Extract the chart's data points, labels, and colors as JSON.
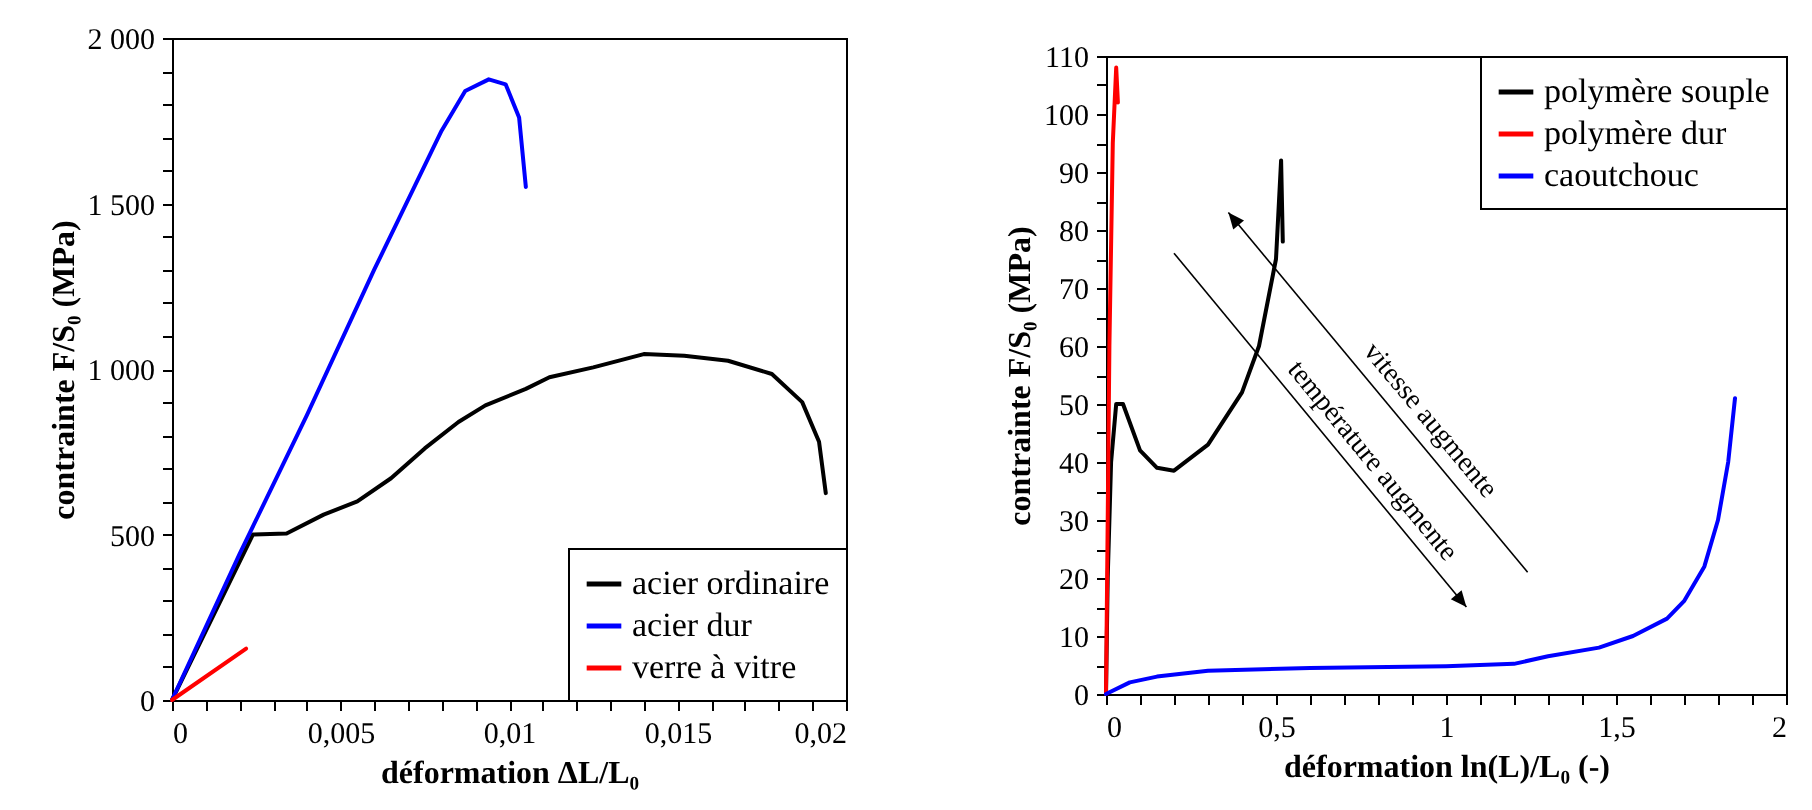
{
  "chart_data": [
    {
      "type": "line",
      "xlabel": "déformation ΔL/L₀",
      "ylabel": "contrainte F/S₀ (MPa)",
      "legend": "bottom right",
      "xlim": [
        0,
        0.02
      ],
      "ylim": [
        0,
        2000
      ],
      "xticks": [
        0,
        {
          "value": 0.001,
          "label": null
        },
        {
          "value": 0.002,
          "label": null
        },
        {
          "value": 0.003,
          "label": null
        },
        {
          "value": 0.004,
          "label": null
        },
        {
          "value": 0.005,
          "label": "0,005"
        },
        {
          "value": 0.006,
          "label": null
        },
        {
          "value": 0.007,
          "label": null
        },
        {
          "value": 0.008,
          "label": null
        },
        {
          "value": 0.009,
          "label": null
        },
        {
          "value": 0.01,
          "label": "0,01"
        },
        {
          "value": 0.011,
          "label": null
        },
        {
          "value": 0.012,
          "label": null
        },
        {
          "value": 0.013,
          "label": null
        },
        {
          "value": 0.014,
          "label": null
        },
        {
          "value": 0.015,
          "label": "0,015"
        },
        {
          "value": 0.016,
          "label": null
        },
        {
          "value": 0.017,
          "label": null
        },
        {
          "value": 0.018,
          "label": null
        },
        {
          "value": 0.019,
          "label": null
        },
        {
          "value": 0.02,
          "label": "0,02"
        }
      ],
      "yticks": [
        0,
        {
          "value": 100,
          "label": null
        },
        {
          "value": 200,
          "label": null
        },
        {
          "value": 300,
          "label": null
        },
        {
          "value": 400,
          "label": null
        },
        500,
        {
          "value": 600,
          "label": null
        },
        {
          "value": 700,
          "label": null
        },
        {
          "value": 800,
          "label": null
        },
        {
          "value": 900,
          "label": null
        },
        {
          "value": 1000,
          "label": "1 000"
        },
        {
          "value": 1100,
          "label": null
        },
        {
          "value": 1200,
          "label": null
        },
        {
          "value": 1300,
          "label": null
        },
        {
          "value": 1400,
          "label": null
        },
        {
          "value": 1500,
          "label": "1 500"
        },
        {
          "value": 1600,
          "label": null
        },
        {
          "value": 1700,
          "label": null
        },
        {
          "value": 1800,
          "label": null
        },
        {
          "value": 1900,
          "label": null
        },
        {
          "value": 2000,
          "label": "2 000"
        }
      ],
      "series": [
        {
          "name": "acier ordinaire",
          "color": "#000000",
          "x": [
            0,
            0.0024,
            0.0034,
            0.0045,
            0.0055,
            0.0065,
            0.0075,
            0.0085,
            0.0093,
            0.0105,
            0.0112,
            0.0125,
            0.014,
            0.0152,
            0.0165,
            0.0178,
            0.0187,
            0.0192,
            0.0194
          ],
          "values": [
            0,
            500,
            503,
            560,
            600,
            670,
            760,
            840,
            890,
            940,
            975,
            1005,
            1045,
            1040,
            1025,
            985,
            900,
            780,
            625
          ]
        },
        {
          "name": "acier dur",
          "color": "#0000ff",
          "x": [
            0,
            0.002,
            0.004,
            0.006,
            0.008,
            0.0087,
            0.0094,
            0.0099,
            0.0103,
            0.0105
          ],
          "values": [
            0,
            440,
            860,
            1300,
            1720,
            1840,
            1875,
            1860,
            1760,
            1550
          ]
        },
        {
          "name": "verre à vitre",
          "color": "#ff0000",
          "x": [
            0,
            0.0022
          ],
          "values": [
            0,
            155
          ]
        }
      ]
    },
    {
      "type": "line",
      "xlabel": "déformation ln(L)/L₀ (-)",
      "ylabel": "contrainte F/S₀ (MPa)",
      "legend": "top right",
      "xlim": [
        0,
        2
      ],
      "ylim": [
        0,
        110
      ],
      "xticks": [
        0,
        {
          "value": 0.1,
          "label": null
        },
        {
          "value": 0.2,
          "label": null
        },
        {
          "value": 0.3,
          "label": null
        },
        {
          "value": 0.4,
          "label": null
        },
        {
          "value": 0.5,
          "label": "0,5"
        },
        {
          "value": 0.6,
          "label": null
        },
        {
          "value": 0.7,
          "label": null
        },
        {
          "value": 0.8,
          "label": null
        },
        {
          "value": 0.9,
          "label": null
        },
        1,
        {
          "value": 1.1,
          "label": null
        },
        {
          "value": 1.2,
          "label": null
        },
        {
          "value": 1.3,
          "label": null
        },
        {
          "value": 1.4,
          "label": null
        },
        {
          "value": 1.5,
          "label": "1,5"
        },
        {
          "value": 1.6,
          "label": null
        },
        {
          "value": 1.7,
          "label": null
        },
        {
          "value": 1.8,
          "label": null
        },
        {
          "value": 1.9,
          "label": null
        },
        2
      ],
      "yticks": [
        0,
        {
          "value": 5,
          "label": null
        },
        10,
        {
          "value": 15,
          "label": null
        },
        20,
        {
          "value": 25,
          "label": null
        },
        30,
        {
          "value": 35,
          "label": null
        },
        40,
        {
          "value": 45,
          "label": null
        },
        50,
        {
          "value": 55,
          "label": null
        },
        60,
        {
          "value": 65,
          "label": null
        },
        70,
        {
          "value": 75,
          "label": null
        },
        80,
        {
          "value": 85,
          "label": null
        },
        90,
        {
          "value": 95,
          "label": null
        },
        100,
        {
          "value": 105,
          "label": null
        },
        110
      ],
      "series": [
        {
          "name": "polymère souple",
          "color": "#000000",
          "x": [
            0,
            0.005,
            0.015,
            0.03,
            0.05,
            0.1,
            0.15,
            0.2,
            0.3,
            0.4,
            0.45,
            0.5,
            0.515,
            0.52
          ],
          "values": [
            0,
            20,
            40,
            50,
            50,
            42,
            39,
            38.5,
            43,
            52,
            60,
            75,
            92,
            78
          ]
        },
        {
          "name": "polymère dur",
          "color": "#ff0000",
          "x": [
            0,
            0.01,
            0.02,
            0.03,
            0.035
          ],
          "values": [
            0,
            60,
            95,
            108,
            102
          ]
        },
        {
          "name": "caoutchouc",
          "color": "#0000ff",
          "x": [
            0,
            0.07,
            0.15,
            0.3,
            0.6,
            1.0,
            1.2,
            1.3,
            1.45,
            1.55,
            1.65,
            1.7,
            1.76,
            1.8,
            1.83,
            1.85
          ],
          "values": [
            0,
            2,
            3,
            4,
            4.5,
            4.8,
            5.2,
            6.5,
            8,
            10,
            13,
            16,
            22,
            30,
            40,
            51
          ]
        }
      ],
      "annotations": [
        "vitesse augmente",
        "température augmente"
      ]
    }
  ]
}
